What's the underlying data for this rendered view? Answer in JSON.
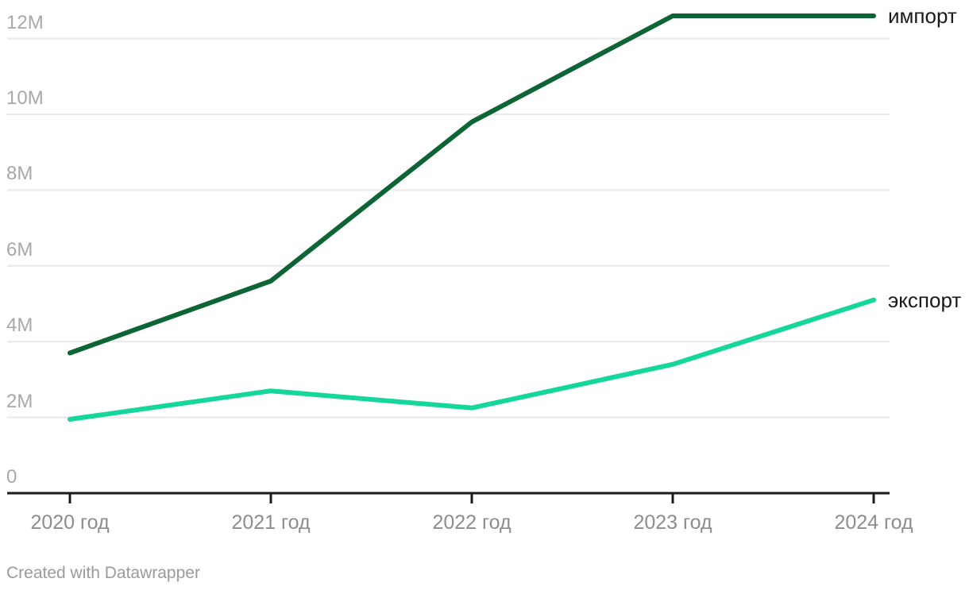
{
  "chart_data": {
    "type": "line",
    "title": "",
    "categories": [
      "2020 год",
      "2021 год",
      "2022 год",
      "2023 год",
      "2024 год"
    ],
    "series": [
      {
        "key": "import",
        "name": "импорт",
        "color": "#0d6434",
        "values": [
          3.7,
          5.6,
          9.8,
          12.6,
          12.6
        ]
      },
      {
        "key": "export",
        "name": "экспорт",
        "color": "#15d79b",
        "values": [
          1.95,
          2.7,
          2.25,
          3.4,
          5.1
        ]
      }
    ],
    "value_unit": "M",
    "y_ticks": [
      {
        "value": 0,
        "label": "0"
      },
      {
        "value": 2,
        "label": "2M"
      },
      {
        "value": 4,
        "label": "4M"
      },
      {
        "value": 6,
        "label": "6M"
      },
      {
        "value": 8,
        "label": "8M"
      },
      {
        "value": 10,
        "label": "10M"
      },
      {
        "value": 12,
        "label": "12M"
      }
    ],
    "ylim": [
      0,
      12.6
    ],
    "grid": true,
    "legend_position": "direct labels at right line ends"
  },
  "colors": {
    "background": "#ffffff",
    "gridline": "#e9e9e9",
    "axis_line": "#1b1b1b",
    "y_tick_text": "#a8a8a8",
    "x_tick_text": "#8d8d8d",
    "series_label_text": "#1a1a1a",
    "attribution_text": "#9b9b9b"
  },
  "footer": {
    "attribution": "Created with Datawrapper"
  }
}
